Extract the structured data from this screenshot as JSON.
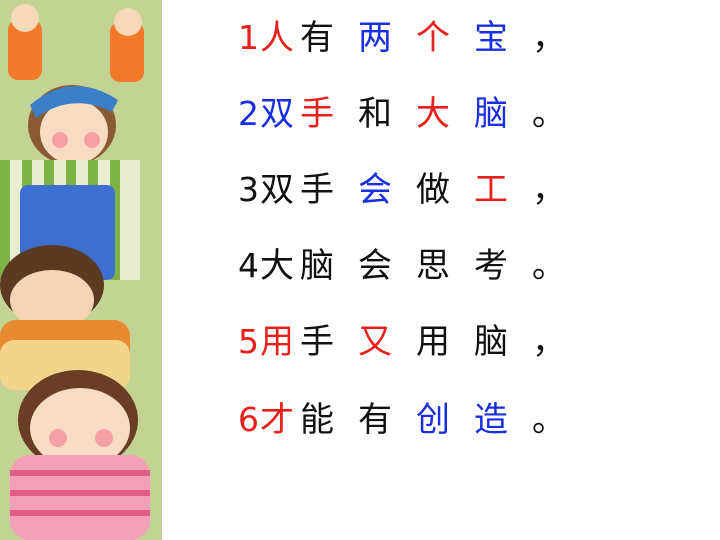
{
  "colors": {
    "red": "#e8201b",
    "blue": "#1a2fe0",
    "black": "#111111",
    "illustration_bg": "#c9d79a"
  },
  "lines": [
    {
      "num": "1",
      "numColor": "red",
      "chars": [
        {
          "t": "人",
          "c": "red"
        },
        {
          "t": "有",
          "c": "black"
        },
        {
          "t": "两",
          "c": "blue"
        },
        {
          "t": "个",
          "c": "red"
        },
        {
          "t": "宝",
          "c": "blue"
        }
      ],
      "punc": "，"
    },
    {
      "num": "2",
      "numColor": "blue",
      "chars": [
        {
          "t": "双",
          "c": "blue"
        },
        {
          "t": "手",
          "c": "red"
        },
        {
          "t": "和",
          "c": "black"
        },
        {
          "t": "大",
          "c": "red"
        },
        {
          "t": "脑",
          "c": "blue"
        }
      ],
      "punc": "。"
    },
    {
      "num": "3",
      "numColor": "black",
      "chars": [
        {
          "t": "双",
          "c": "black"
        },
        {
          "t": "手",
          "c": "black"
        },
        {
          "t": "会",
          "c": "blue"
        },
        {
          "t": "做",
          "c": "black"
        },
        {
          "t": "工",
          "c": "red"
        }
      ],
      "punc": "，"
    },
    {
      "num": "4",
      "numColor": "black",
      "chars": [
        {
          "t": "大",
          "c": "black"
        },
        {
          "t": "脑",
          "c": "black"
        },
        {
          "t": "会",
          "c": "black"
        },
        {
          "t": "思",
          "c": "black"
        },
        {
          "t": "考",
          "c": "black"
        }
      ],
      "punc": "。"
    },
    {
      "num": "5",
      "numColor": "red",
      "chars": [
        {
          "t": "用",
          "c": "red"
        },
        {
          "t": "手",
          "c": "black"
        },
        {
          "t": "又",
          "c": "red"
        },
        {
          "t": "用",
          "c": "black"
        },
        {
          "t": "脑",
          "c": "black"
        }
      ],
      "punc": "，"
    },
    {
      "num": "6",
      "numColor": "red",
      "chars": [
        {
          "t": "才",
          "c": "red"
        },
        {
          "t": "能",
          "c": "black"
        },
        {
          "t": "有",
          "c": "black"
        },
        {
          "t": "创",
          "c": "blue"
        },
        {
          "t": "造",
          "c": "blue"
        }
      ],
      "punc": "。"
    }
  ]
}
